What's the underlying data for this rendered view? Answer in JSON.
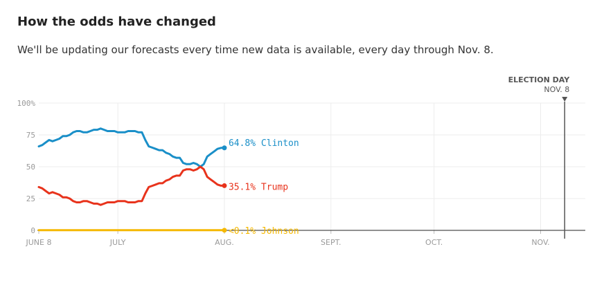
{
  "header": {
    "title": "How the odds have changed",
    "subtitle": "We'll be updating our forecasts every time new data is available, every day through Nov. 8."
  },
  "colors": {
    "clinton": "#1a8fc8",
    "trump": "#e8331c",
    "johnson": "#f5b800",
    "grid": "#ececec",
    "axis": "#222222",
    "tick": "#999999"
  },
  "chart_data": {
    "type": "line",
    "title": "How the odds have changed",
    "xlabel": "",
    "ylabel": "",
    "x_range": [
      "2016-06-08",
      "2016-11-14"
    ],
    "ylim": [
      0,
      100
    ],
    "y_ticks": [
      {
        "value": 0,
        "label": "0"
      },
      {
        "value": 25,
        "label": "25"
      },
      {
        "value": 50,
        "label": "50"
      },
      {
        "value": 75,
        "label": "75"
      },
      {
        "value": 100,
        "label": "100%"
      }
    ],
    "x_ticks": [
      {
        "date": "2016-06-08",
        "label": "JUNE 8"
      },
      {
        "date": "2016-07-01",
        "label": "JULY"
      },
      {
        "date": "2016-08-01",
        "label": "AUG."
      },
      {
        "date": "2016-09-01",
        "label": "SEPT."
      },
      {
        "date": "2016-10-01",
        "label": "OCT."
      },
      {
        "date": "2016-11-01",
        "label": "NOV."
      }
    ],
    "grid": true,
    "marker": {
      "date": "2016-11-08",
      "label": "ELECTION DAY",
      "date_label": "NOV. 8"
    },
    "series": [
      {
        "name": "Clinton",
        "end_label": "64.8% Clinton",
        "color": "#1a8fc8",
        "x": [
          "2016-06-08",
          "2016-06-09",
          "2016-06-10",
          "2016-06-11",
          "2016-06-12",
          "2016-06-13",
          "2016-06-14",
          "2016-06-15",
          "2016-06-16",
          "2016-06-17",
          "2016-06-18",
          "2016-06-19",
          "2016-06-20",
          "2016-06-21",
          "2016-06-22",
          "2016-06-23",
          "2016-06-24",
          "2016-06-25",
          "2016-06-26",
          "2016-06-27",
          "2016-06-28",
          "2016-06-29",
          "2016-06-30",
          "2016-07-01",
          "2016-07-02",
          "2016-07-03",
          "2016-07-04",
          "2016-07-05",
          "2016-07-06",
          "2016-07-07",
          "2016-07-08",
          "2016-07-09",
          "2016-07-10",
          "2016-07-11",
          "2016-07-12",
          "2016-07-13",
          "2016-07-14",
          "2016-07-15",
          "2016-07-16",
          "2016-07-17",
          "2016-07-18",
          "2016-07-19",
          "2016-07-20",
          "2016-07-21",
          "2016-07-22",
          "2016-07-23",
          "2016-07-24",
          "2016-07-25",
          "2016-07-26",
          "2016-07-27",
          "2016-07-28",
          "2016-07-29",
          "2016-07-30",
          "2016-07-31",
          "2016-08-01"
        ],
        "y": [
          66,
          67,
          69,
          71,
          70,
          71,
          72,
          74,
          74,
          75,
          77,
          78,
          78,
          77,
          77,
          78,
          79,
          79,
          80,
          79,
          78,
          78,
          78,
          77,
          77,
          77,
          78,
          78,
          78,
          77,
          77,
          71,
          66,
          65,
          64,
          63,
          63,
          61,
          60,
          58,
          57,
          57,
          53,
          52,
          52,
          53,
          52,
          50,
          52,
          58,
          60,
          62,
          64,
          64.8,
          64.8
        ]
      },
      {
        "name": "Trump",
        "end_label": "35.1% Trump",
        "color": "#e8331c",
        "x": [
          "2016-06-08",
          "2016-06-09",
          "2016-06-10",
          "2016-06-11",
          "2016-06-12",
          "2016-06-13",
          "2016-06-14",
          "2016-06-15",
          "2016-06-16",
          "2016-06-17",
          "2016-06-18",
          "2016-06-19",
          "2016-06-20",
          "2016-06-21",
          "2016-06-22",
          "2016-06-23",
          "2016-06-24",
          "2016-06-25",
          "2016-06-26",
          "2016-06-27",
          "2016-06-28",
          "2016-06-29",
          "2016-06-30",
          "2016-07-01",
          "2016-07-02",
          "2016-07-03",
          "2016-07-04",
          "2016-07-05",
          "2016-07-06",
          "2016-07-07",
          "2016-07-08",
          "2016-07-09",
          "2016-07-10",
          "2016-07-11",
          "2016-07-12",
          "2016-07-13",
          "2016-07-14",
          "2016-07-15",
          "2016-07-16",
          "2016-07-17",
          "2016-07-18",
          "2016-07-19",
          "2016-07-20",
          "2016-07-21",
          "2016-07-22",
          "2016-07-23",
          "2016-07-24",
          "2016-07-25",
          "2016-07-26",
          "2016-07-27",
          "2016-07-28",
          "2016-07-29",
          "2016-07-30",
          "2016-07-31",
          "2016-08-01"
        ],
        "y": [
          34,
          33,
          31,
          29,
          30,
          29,
          28,
          26,
          26,
          25,
          23,
          22,
          22,
          23,
          23,
          22,
          21,
          21,
          20,
          21,
          22,
          22,
          22,
          23,
          23,
          23,
          22,
          22,
          22,
          23,
          23,
          29,
          34,
          35,
          36,
          37,
          37,
          39,
          40,
          42,
          43,
          43,
          47,
          48,
          48,
          47,
          48,
          50,
          48,
          42,
          40,
          38,
          36,
          35.1,
          35.1
        ]
      },
      {
        "name": "Johnson",
        "end_label": "<0.1% Johnson",
        "color": "#f5b800",
        "x": [
          "2016-06-08",
          "2016-08-01"
        ],
        "y": [
          0.1,
          0.1
        ]
      }
    ]
  }
}
